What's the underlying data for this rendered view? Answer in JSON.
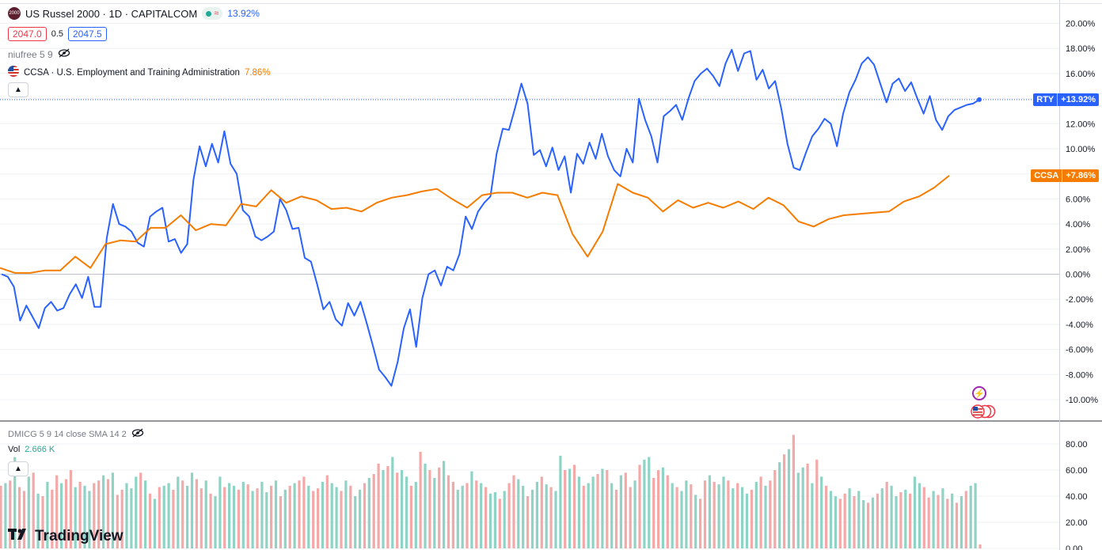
{
  "header": {
    "symbol_logo_text": "2000",
    "title": "US Russel 2000 · 1D · CAPITALCOM",
    "change_pct": "13.92%",
    "sell_price": "2047.0",
    "spread": "0.5",
    "buy_price": "2047.5",
    "indicator_1": "niufree 5 9",
    "compare_label": "CCSA · U.S. Employment and Training Administration",
    "compare_change": "7.86%",
    "collapse_icon": "chevron-up-icon"
  },
  "lower_pane": {
    "indicator": "DMICG 5 9 14 close SMA 14 2",
    "vol_label": "Vol",
    "vol_value": "2.666 K",
    "collapse_icon": "chevron-up-icon",
    "y_ticks": [
      "80.00",
      "60.00",
      "40.00",
      "20.00",
      "0.00"
    ]
  },
  "price_axis": {
    "ticks": [
      "20.00%",
      "18.00%",
      "16.00%",
      "14.00%",
      "12.00%",
      "10.00%",
      "8.00%",
      "6.00%",
      "4.00%",
      "2.00%",
      "0.00%",
      "-2.00%",
      "-4.00%",
      "-6.00%",
      "-8.00%",
      "-10.00%"
    ],
    "rty_tag": {
      "symbol": "RTY",
      "value": "+13.92%"
    },
    "ccsa_tag": {
      "symbol": "CCSA",
      "value": "+7.86%"
    }
  },
  "branding": {
    "logo_text": "TradingView"
  },
  "colors": {
    "rty": "#2962ff",
    "ccsa": "#f57c00",
    "vol_up": "#8fd3c5",
    "vol_down": "#f4a9a9",
    "grid": "#eef0f3"
  },
  "chart_data": [
    {
      "type": "line",
      "title": "US Russel 2000 · 1D · CAPITALCOM",
      "ylim": [
        -11,
        21
      ],
      "series": [
        {
          "name": "RTY",
          "values": [
            0,
            -0.2,
            -1,
            -3.7,
            -2.5,
            -3.4,
            -4.3,
            -2.7,
            -2.2,
            -2.9,
            -2.7,
            -1.6,
            -0.8,
            -1.9,
            -0.2,
            -2.6,
            -2.6,
            2.9,
            5.6,
            4,
            3.8,
            3.4,
            2.5,
            2.2,
            4.6,
            5,
            5.3,
            2.6,
            2.8,
            1.7,
            2.4,
            7.5,
            10.2,
            8.6,
            10.4,
            8.9,
            11.4,
            8.8,
            8,
            5.1,
            4.6,
            3,
            2.7,
            3,
            3.4,
            6,
            5.1,
            3.6,
            3.7,
            1.3,
            1,
            -0.8,
            -2.8,
            -2.2,
            -3.6,
            -4.1,
            -2.3,
            -3.3,
            -2.2,
            -3.9,
            -5.7,
            -7.6,
            -8.2,
            -8.9,
            -7,
            -4.3,
            -2.8,
            -5.8,
            -1.9,
            0,
            0.3,
            -0.9,
            0.6,
            0.3,
            1.6,
            4.6,
            3.6,
            5,
            5.7,
            6.2,
            9.6,
            11.6,
            11.5,
            13.3,
            15.2,
            13.6,
            9.5,
            9.9,
            8.6,
            10.1,
            8.3,
            9.4,
            6.5,
            9.6,
            8.8,
            10.5,
            9.2,
            11.2,
            9.4,
            8.3,
            7.8,
            10,
            8.9,
            14,
            12.3,
            11,
            8.9,
            12.6,
            13,
            13.5,
            12.3,
            14,
            15.4,
            16,
            16.4,
            15.8,
            15,
            16.8,
            17.9,
            16.2,
            17.6,
            17.8,
            15.5,
            16.3,
            14.8,
            15.4,
            13.2,
            10.4,
            8.5,
            8.3,
            9.7,
            11,
            11.6,
            12.4,
            12,
            10.2,
            12.8,
            14.5,
            15.5,
            16.8,
            17.3,
            16.7,
            15.2,
            13.7,
            15.2,
            15.6,
            14.6,
            15.3,
            14,
            12.8,
            14.2,
            12.3,
            11.5,
            12.6,
            13.1,
            13.3,
            13.5,
            13.6,
            13.92
          ]
        },
        {
          "name": "CCSA",
          "values": [
            0.5,
            0.1,
            0.1,
            0.3,
            0.3,
            1.4,
            0.5,
            2.4,
            2.7,
            2.6,
            3.7,
            3.7,
            4.7,
            3.5,
            4,
            3.9,
            5.6,
            5.4,
            6.7,
            5.7,
            6.2,
            5.9,
            5.2,
            5.3,
            5,
            5.7,
            6.1,
            6.3,
            6.6,
            6.8,
            6,
            5.3,
            6.3,
            6.5,
            6.5,
            6.1,
            6.5,
            6.3,
            3.2,
            1.4,
            3.4,
            7.2,
            6.5,
            6.1,
            5,
            5.9,
            5.3,
            5.7,
            5.3,
            5.8,
            5.2,
            6.1,
            5.5,
            4.2,
            3.8,
            4.4,
            4.7,
            4.8,
            4.9,
            5,
            5.8,
            6.2,
            6.9,
            7.86
          ]
        }
      ]
    },
    {
      "type": "bar",
      "title": "Vol",
      "ylim": [
        0,
        90
      ],
      "series": [
        {
          "name": "Vol",
          "values": [
            48,
            50,
            52,
            70,
            47,
            44,
            55,
            58,
            42,
            40,
            51,
            45,
            56,
            50,
            53,
            60,
            47,
            51,
            48,
            44,
            50,
            52,
            56,
            53,
            58,
            41,
            45,
            50,
            46,
            55,
            58,
            52,
            42,
            38,
            47,
            48,
            50,
            45,
            55,
            52,
            48,
            58,
            53,
            46,
            52,
            42,
            40,
            55,
            47,
            50,
            48,
            45,
            51,
            49,
            44,
            46,
            51,
            43,
            48,
            52,
            40,
            45,
            48,
            50,
            52,
            55,
            48,
            44,
            46,
            51,
            56,
            50,
            47,
            44,
            52,
            48,
            40,
            45,
            50,
            54,
            57,
            65,
            60,
            63,
            70,
            58,
            60,
            55,
            48,
            51,
            74,
            65,
            60,
            54,
            62,
            67,
            56,
            51,
            45,
            48,
            50,
            59,
            52,
            50,
            47,
            42,
            43,
            38,
            44,
            50,
            56,
            53,
            48,
            40,
            45,
            51,
            55,
            49,
            47,
            44,
            71,
            60,
            61,
            64,
            55,
            48,
            50,
            55,
            57,
            61,
            60,
            50,
            45,
            56,
            58,
            47,
            52,
            64,
            68,
            70,
            54,
            60,
            62,
            56,
            50,
            47,
            44,
            52,
            49,
            41,
            38,
            52,
            56,
            51,
            49,
            55,
            52,
            46,
            50,
            47,
            42,
            45,
            51,
            55,
            48,
            52,
            60,
            66,
            72,
            76,
            87,
            58,
            62,
            65,
            50,
            68,
            55,
            48,
            44,
            40,
            38,
            42,
            46,
            40,
            44,
            37,
            35,
            39,
            42,
            46,
            51,
            48,
            40,
            43,
            45,
            42,
            55,
            50,
            47,
            39,
            44,
            41,
            46,
            38,
            42,
            35,
            40,
            44,
            48,
            50,
            3
          ],
          "up": [
            0,
            1,
            0,
            1,
            0,
            0,
            1,
            0,
            1,
            0,
            1,
            0,
            0,
            1,
            0,
            0,
            1,
            0,
            1,
            1,
            0,
            0,
            1,
            0,
            1,
            0,
            0,
            1,
            1,
            1,
            0,
            1,
            0,
            1,
            0,
            1,
            1,
            0,
            1,
            0,
            1,
            1,
            0,
            0,
            1,
            0,
            1,
            1,
            0,
            1,
            1,
            0,
            1,
            0,
            1,
            0,
            1,
            1,
            0,
            1,
            0,
            1,
            0,
            1,
            0,
            0,
            1,
            0,
            0,
            1,
            0,
            1,
            1,
            0,
            1,
            0,
            1,
            1,
            0,
            1,
            0,
            0,
            1,
            0,
            1,
            0,
            1,
            1,
            0,
            1,
            0,
            1,
            0,
            1,
            0,
            1,
            0,
            0,
            1,
            1,
            0,
            1,
            0,
            1,
            0,
            1,
            1,
            0,
            1,
            0,
            0,
            1,
            1,
            0,
            1,
            1,
            0,
            1,
            0,
            1,
            1,
            0,
            1,
            0,
            1,
            0,
            1,
            1,
            0,
            1,
            0,
            1,
            0,
            1,
            0,
            0,
            1,
            0,
            1,
            1,
            0,
            0,
            1,
            0,
            1,
            0,
            1,
            1,
            0,
            1,
            0,
            0,
            1,
            0,
            1,
            1,
            0,
            1,
            0,
            1,
            1,
            0,
            1,
            0,
            1,
            0,
            0,
            1,
            0,
            1,
            0,
            1,
            1,
            0,
            1,
            0,
            1,
            0,
            1,
            1,
            0,
            0,
            1,
            0,
            1,
            1,
            0,
            1,
            0,
            1,
            0,
            1,
            1,
            0,
            1,
            0,
            1,
            1,
            0,
            0,
            1,
            0,
            1,
            0,
            1,
            0,
            1,
            0,
            1,
            1,
            0
          ]
        }
      ]
    }
  ]
}
